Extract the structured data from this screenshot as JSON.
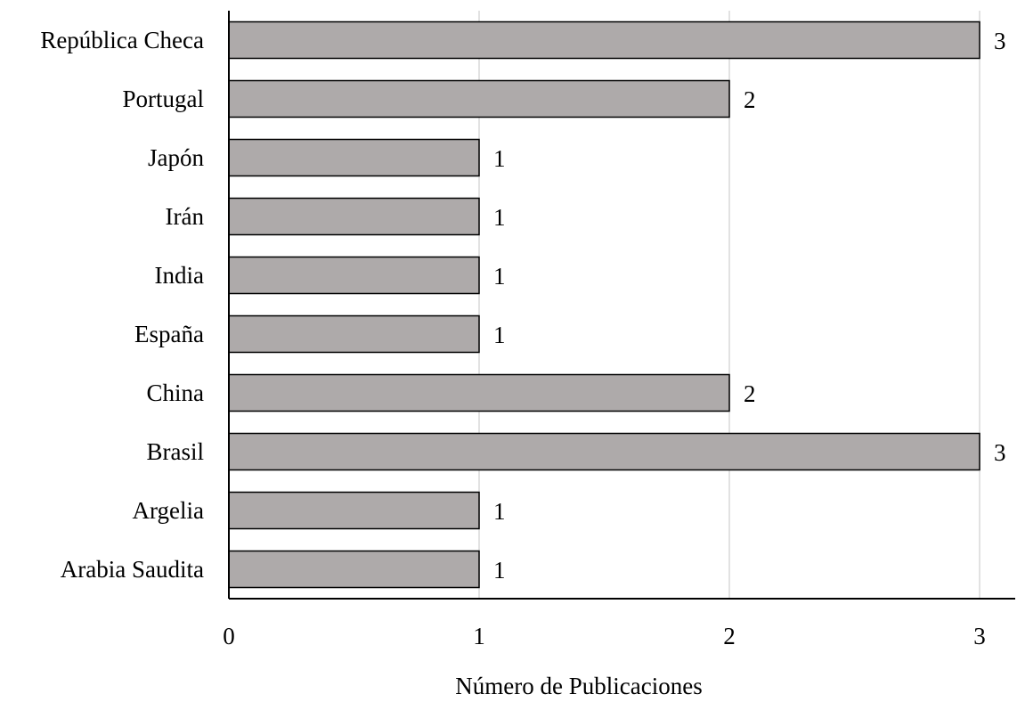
{
  "chart_data": {
    "type": "bar",
    "orientation": "horizontal",
    "categories": [
      "República Checa",
      "Portugal",
      "Japón",
      "Irán",
      "India",
      "España",
      "China",
      "Brasil",
      "Argelia",
      "Arabia Saudita"
    ],
    "values": [
      3,
      2,
      1,
      1,
      1,
      1,
      2,
      3,
      1,
      1
    ],
    "data_labels": [
      "3",
      "2",
      "1",
      "1",
      "1",
      "1",
      "2",
      "3",
      "1",
      "1"
    ],
    "xlabel": "Número de Publicaciones",
    "ylabel": "",
    "xlim": [
      0,
      3
    ],
    "xticks": [
      0,
      1,
      2,
      3
    ],
    "xtick_labels": [
      "0",
      "1",
      "2",
      "3"
    ],
    "grid": "vertical",
    "legend": "none",
    "colors": {
      "bar_fill": "#aeaaaa",
      "bar_stroke": "#000000",
      "grid": "#d9d9d9",
      "axis": "#000000"
    }
  }
}
